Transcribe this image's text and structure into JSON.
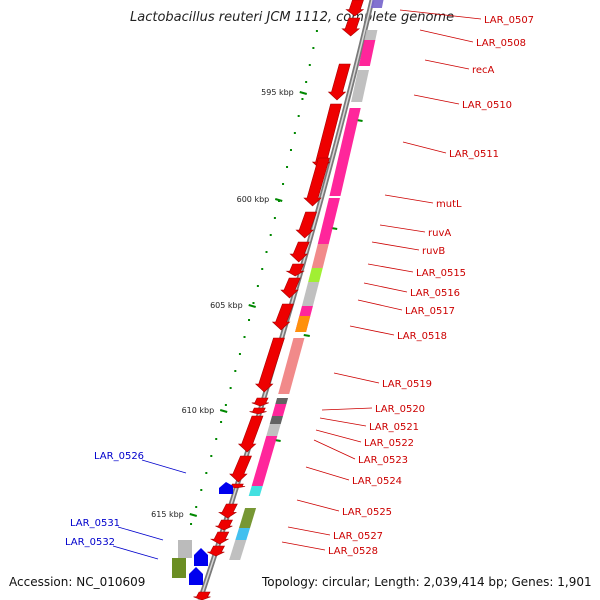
{
  "title": "Lactobacillus reuteri JCM 1112, complete genome",
  "accession": "Accession: NC_010609",
  "summary": "Topology: circular; Length: 2,039,414 bp; Genes: 1,901",
  "colors": {
    "backbone": "#888888",
    "forward_gene": "#ee0000",
    "reverse_gene": "#0000ee",
    "label_forward": "#cc0000",
    "label_reverse": "#0000cc",
    "scale_tick": "#008800"
  },
  "scale_labels": [
    {
      "kbp": 595,
      "text": "595 kbp"
    },
    {
      "kbp": 600,
      "text": "600 kbp"
    },
    {
      "kbp": 605,
      "text": "605 kbp"
    },
    {
      "kbp": 610,
      "text": "610 kbp"
    },
    {
      "kbp": 615,
      "text": "615 kbp"
    }
  ],
  "gene_labels": [
    {
      "text": "LAR_0507",
      "strand": "forward"
    },
    {
      "text": "LAR_0508",
      "strand": "forward"
    },
    {
      "text": "recA",
      "strand": "forward"
    },
    {
      "text": "LAR_0510",
      "strand": "forward"
    },
    {
      "text": "LAR_0511",
      "strand": "forward"
    },
    {
      "text": "mutL",
      "strand": "forward"
    },
    {
      "text": "ruvA",
      "strand": "forward"
    },
    {
      "text": "ruvB",
      "strand": "forward"
    },
    {
      "text": "LAR_0515",
      "strand": "forward"
    },
    {
      "text": "LAR_0516",
      "strand": "forward"
    },
    {
      "text": "LAR_0517",
      "strand": "forward"
    },
    {
      "text": "LAR_0518",
      "strand": "forward"
    },
    {
      "text": "LAR_0519",
      "strand": "forward"
    },
    {
      "text": "LAR_0520",
      "strand": "forward"
    },
    {
      "text": "LAR_0521",
      "strand": "forward"
    },
    {
      "text": "LAR_0522",
      "strand": "forward"
    },
    {
      "text": "LAR_0523",
      "strand": "forward"
    },
    {
      "text": "LAR_0524",
      "strand": "forward"
    },
    {
      "text": "LAR_0525",
      "strand": "forward"
    },
    {
      "text": "LAR_0527",
      "strand": "forward"
    },
    {
      "text": "LAR_0528",
      "strand": "forward"
    },
    {
      "text": "LAR_0526",
      "strand": "reverse"
    },
    {
      "text": "LAR_0531",
      "strand": "reverse"
    },
    {
      "text": "LAR_0532",
      "strand": "reverse"
    }
  ]
}
